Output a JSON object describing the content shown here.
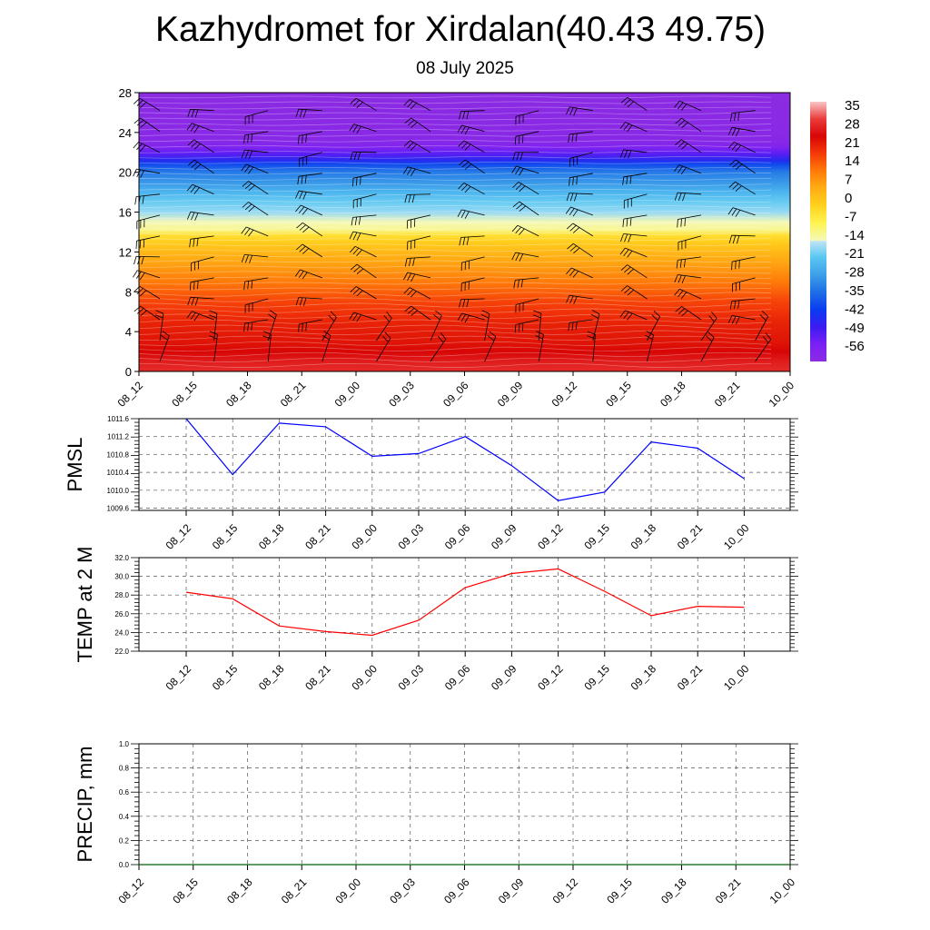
{
  "title": "Kazhydromet for Xirdalan(40.43 49.75)",
  "subtitle": "08 July 2025",
  "chart_data": [
    {
      "type": "heatmap",
      "name": "temperature-height section",
      "x_tick_labels": [
        "08_12",
        "08_15",
        "08_18",
        "08_21",
        "09_00",
        "09_03",
        "09_06",
        "09_09",
        "09_12",
        "09_15",
        "09_18",
        "09_21",
        "10_00"
      ],
      "y_ticks": [
        0,
        4,
        8,
        12,
        16,
        20,
        24,
        28
      ],
      "ylim": [
        0,
        28
      ],
      "colorbar_labels": [
        "35",
        "28",
        "21",
        "14",
        "7",
        "0",
        "-7",
        "-14",
        "-21",
        "-28",
        "-35",
        "-42",
        "-49",
        "-56"
      ],
      "colorbar_range": [
        -63,
        42
      ],
      "temperature_profile": {
        "height": [
          0,
          1,
          2,
          3,
          4,
          5,
          6,
          7,
          8,
          9,
          10,
          11,
          12,
          13,
          13.7,
          14.2,
          15,
          16,
          17,
          18,
          19,
          20,
          20.8,
          21.2,
          21.8,
          22.5,
          23,
          24,
          28
        ],
        "value": [
          33,
          31,
          28,
          26,
          25,
          24,
          22,
          20,
          17,
          14,
          11,
          8,
          5,
          1,
          -3,
          -11,
          -14,
          -17,
          -20,
          -24,
          -29,
          -33,
          -40,
          -46,
          -52,
          -58,
          -61,
          -62,
          -63
        ]
      },
      "wind_barbs": true
    },
    {
      "type": "line",
      "ylabel": "PMSL",
      "x": [
        "08_12",
        "08_15",
        "08_18",
        "08_21",
        "09_00",
        "09_03",
        "09_06",
        "09_09",
        "09_12",
        "09_15",
        "09_18",
        "09_21",
        "10_00"
      ],
      "y_ticks": [
        "1009.6",
        "1010.0",
        "1010.4",
        "1010.8",
        "1011.2",
        "1011.6"
      ],
      "ylim": [
        1009.55,
        1011.6
      ],
      "series": [
        {
          "values": [
            1011.6,
            1010.35,
            1011.5,
            1011.42,
            1010.76,
            1010.82,
            1011.2,
            1010.55,
            1009.77,
            1009.96,
            1011.08,
            1010.94,
            1010.26
          ],
          "color": "#0000ff"
        }
      ],
      "grid": true
    },
    {
      "type": "line",
      "ylabel": "TEMP at 2 M",
      "x": [
        "08_12",
        "08_15",
        "08_18",
        "08_21",
        "09_00",
        "09_03",
        "09_06",
        "09_09",
        "09_12",
        "09_15",
        "09_18",
        "09_21",
        "10_00"
      ],
      "y_ticks": [
        "22.0",
        "24.0",
        "26.0",
        "28.0",
        "30.0",
        "32.0"
      ],
      "ylim": [
        22,
        32
      ],
      "series": [
        {
          "values": [
            28.3,
            27.6,
            24.7,
            24.1,
            23.7,
            25.3,
            28.8,
            30.3,
            30.8,
            28.4,
            25.8,
            26.8,
            26.7
          ],
          "color": "#ff0000"
        }
      ],
      "grid": true
    },
    {
      "type": "line",
      "ylabel": "PRECIP, mm",
      "x_tick_labels": [
        "08_12",
        "08_15",
        "08_18",
        "08_21",
        "09_00",
        "09_03",
        "09_06",
        "09_09",
        "09_12",
        "09_15",
        "09_18",
        "09_21",
        "10_00"
      ],
      "y_ticks": [
        "0.0",
        "0.2",
        "0.4",
        "0.6",
        "0.8",
        "1.0"
      ],
      "ylim": [
        0,
        1
      ],
      "series": [
        {
          "values": [
            0,
            0,
            0,
            0,
            0,
            0,
            0,
            0,
            0,
            0,
            0,
            0,
            0
          ],
          "color": "#006400"
        }
      ],
      "grid": true
    }
  ]
}
